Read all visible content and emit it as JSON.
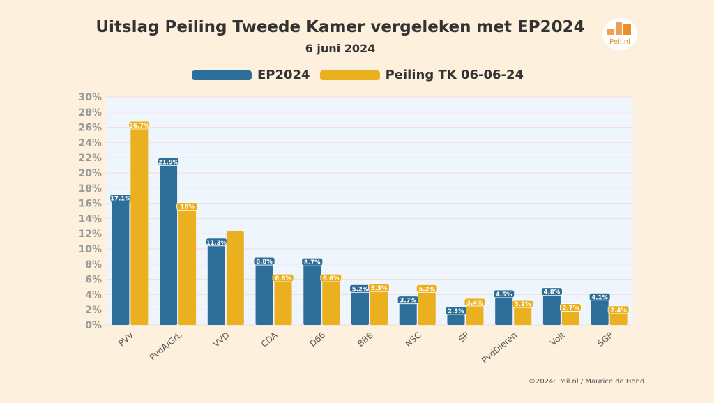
{
  "chart_data": {
    "type": "bar",
    "title": "Uitslag Peiling Tweede Kamer vergeleken met EP2024",
    "subtitle": "6 juni 2024",
    "categories": [
      "PVV",
      "PvdA/GrL",
      "VVD",
      "CDA",
      "D66",
      "BBB",
      "NSC",
      "SP",
      "PvdDieren",
      "Volt",
      "SGP"
    ],
    "series": [
      {
        "name": "EP2024",
        "color": "#2e6f9a",
        "values": [
          17.1,
          21.9,
          11.3,
          8.8,
          8.7,
          5.2,
          3.7,
          2.3,
          4.5,
          4.8,
          4.1
        ],
        "labels": [
          "17.1%",
          "21.9%",
          "11.3%",
          "8.8%",
          "8.7%",
          "5.2%",
          "3.7%",
          "2.3%",
          "4.5%",
          "4.8%",
          "4.1%"
        ]
      },
      {
        "name": "Peiling TK 06-06-24",
        "color": "#eab020",
        "values": [
          26.7,
          16,
          12.3,
          6.6,
          6.6,
          5.3,
          5.2,
          3.4,
          3.2,
          2.7,
          2.4
        ],
        "labels": [
          "26.7%",
          "16%",
          "",
          "6.6%",
          "6.6%",
          "5.3%",
          "5.2%",
          "3.4%",
          "3.2%",
          "2.7%",
          "2.4%"
        ]
      }
    ],
    "ylim": [
      0,
      30
    ],
    "yticks": [
      "0%",
      "2%",
      "4%",
      "6%",
      "8%",
      "10%",
      "12%",
      "14%",
      "16%",
      "18%",
      "20%",
      "22%",
      "24%",
      "26%",
      "28%",
      "30%"
    ],
    "grid": true,
    "legend": "top"
  },
  "logo_text": "Peil.nl",
  "credit": "©2024: Peil.nl / Maurice de Hond"
}
